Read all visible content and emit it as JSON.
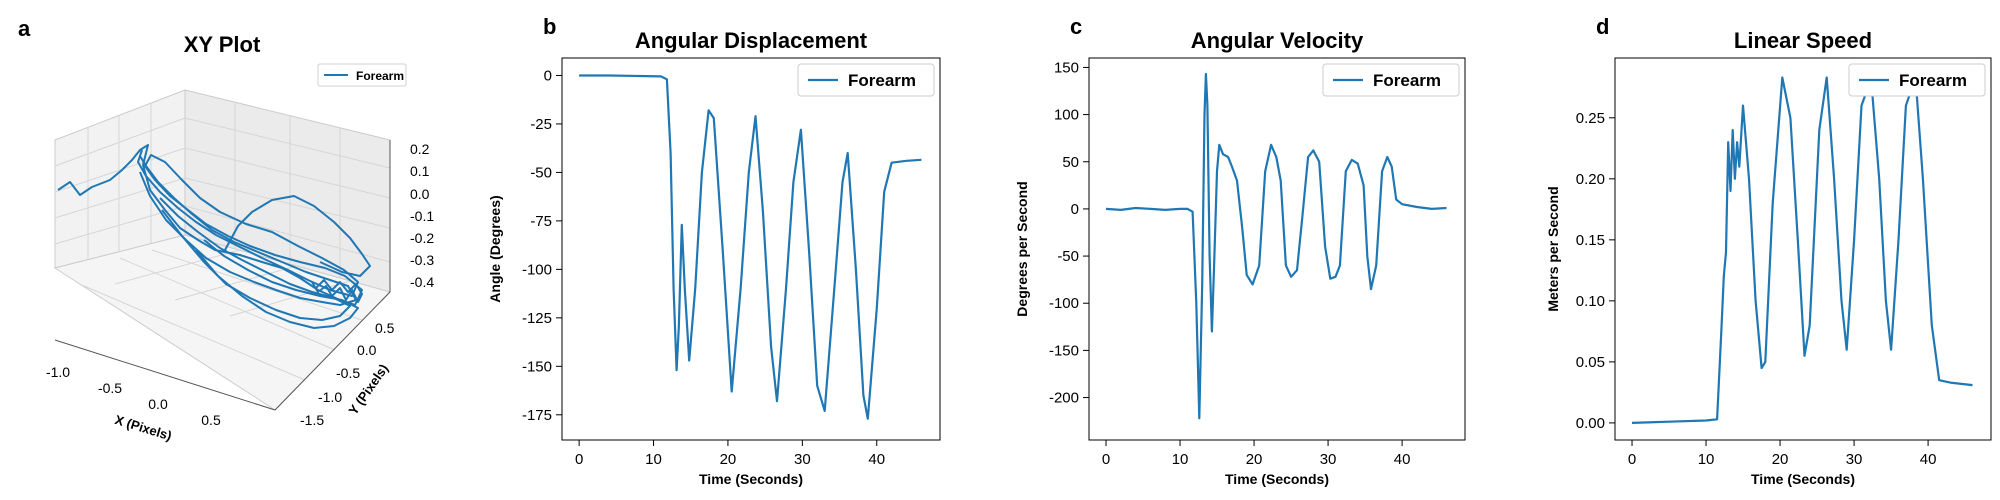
{
  "figure": {
    "line_color": "#1f77b4",
    "panels": [
      "a",
      "b",
      "c",
      "d"
    ]
  },
  "chart_data": [
    {
      "panel_letter": "a",
      "type": "line",
      "projection": "3d",
      "title": "XY Plot",
      "xlabel": "X (Pixels)",
      "ylabel": "Y (Pixels)",
      "zlabel": "",
      "xlim": [
        -1.0,
        0.8
      ],
      "ylim": [
        -1.6,
        0.6
      ],
      "zlim": [
        -0.45,
        0.22
      ],
      "x_ticks": [
        "-1.0",
        "-0.5",
        "0.0",
        "0.5"
      ],
      "y_ticks": [
        "-1.5",
        "-1.0",
        "-0.5",
        "0.0",
        "0.5"
      ],
      "z_ticks": [
        "0.2",
        "0.1",
        "0.0",
        "-0.1",
        "-0.2",
        "-0.3",
        "-0.4"
      ],
      "legend": {
        "entries": [
          "Forearm"
        ],
        "placement": "top-right"
      },
      "grid": true,
      "series": [
        {
          "name": "Forearm",
          "color": "#1f77b4"
        }
      ]
    },
    {
      "panel_letter": "b",
      "type": "line",
      "title": "Angular Displacement",
      "xlabel": "Time (Seconds)",
      "ylabel": "Angle (Degrees)",
      "xlim": [
        -2.3,
        48.5
      ],
      "ylim": [
        -188,
        9
      ],
      "x_ticks": [
        0,
        10,
        20,
        30,
        40
      ],
      "y_ticks": [
        0,
        -25,
        -50,
        -75,
        -100,
        -125,
        -150,
        -175
      ],
      "legend": {
        "entries": [
          "Forearm"
        ],
        "placement": "top-right"
      },
      "grid": false,
      "series": [
        {
          "name": "Forearm",
          "color": "#1f77b4",
          "points": [
            [
              0,
              0
            ],
            [
              4,
              0
            ],
            [
              8,
              -0.3
            ],
            [
              11,
              -0.5
            ],
            [
              11.8,
              -2
            ],
            [
              12.3,
              -40
            ],
            [
              12.7,
              -110
            ],
            [
              13.1,
              -152
            ],
            [
              13.4,
              -130
            ],
            [
              13.8,
              -77
            ],
            [
              14.2,
              -110
            ],
            [
              14.8,
              -147
            ],
            [
              15.6,
              -110
            ],
            [
              16.5,
              -50
            ],
            [
              17.4,
              -18
            ],
            [
              18.1,
              -22
            ],
            [
              19.3,
              -90
            ],
            [
              20.5,
              -163
            ],
            [
              21.7,
              -110
            ],
            [
              22.8,
              -50
            ],
            [
              23.7,
              -21
            ],
            [
              24.7,
              -70
            ],
            [
              25.8,
              -140
            ],
            [
              26.6,
              -168
            ],
            [
              27.8,
              -110
            ],
            [
              28.8,
              -55
            ],
            [
              29.8,
              -28
            ],
            [
              30.9,
              -90
            ],
            [
              32,
              -160
            ],
            [
              33,
              -173
            ],
            [
              34.3,
              -110
            ],
            [
              35.4,
              -55
            ],
            [
              36.1,
              -40
            ],
            [
              37.2,
              -100
            ],
            [
              38.2,
              -165
            ],
            [
              38.8,
              -177
            ],
            [
              40,
              -120
            ],
            [
              41,
              -60
            ],
            [
              42,
              -45
            ],
            [
              44,
              -44
            ],
            [
              46,
              -43.5
            ]
          ]
        }
      ]
    },
    {
      "panel_letter": "c",
      "type": "line",
      "title": "Angular Velocity",
      "xlabel": "Time (Seconds)",
      "ylabel": "Degrees per Second",
      "xlim": [
        -2.3,
        48.5
      ],
      "ylim": [
        -245,
        160
      ],
      "x_ticks": [
        0,
        10,
        20,
        30,
        40
      ],
      "y_ticks": [
        150,
        100,
        50,
        0,
        -50,
        -100,
        -150,
        -200
      ],
      "legend": {
        "entries": [
          "Forearm"
        ],
        "placement": "top-right"
      },
      "grid": false,
      "series": [
        {
          "name": "Forearm",
          "color": "#1f77b4",
          "points": [
            [
              0,
              0
            ],
            [
              2,
              -1
            ],
            [
              4,
              1
            ],
            [
              6,
              0
            ],
            [
              8,
              -1
            ],
            [
              10,
              0
            ],
            [
              11,
              0
            ],
            [
              11.7,
              -3
            ],
            [
              12.2,
              -100
            ],
            [
              12.6,
              -222
            ],
            [
              13,
              -80
            ],
            [
              13.3,
              100
            ],
            [
              13.5,
              143
            ],
            [
              13.7,
              110
            ],
            [
              14,
              -50
            ],
            [
              14.3,
              -130
            ],
            [
              14.6,
              -60
            ],
            [
              15,
              40
            ],
            [
              15.3,
              68
            ],
            [
              15.8,
              58
            ],
            [
              16.5,
              55
            ],
            [
              17,
              45
            ],
            [
              17.7,
              30
            ],
            [
              18.4,
              -20
            ],
            [
              19,
              -70
            ],
            [
              19.8,
              -80
            ],
            [
              20.7,
              -60
            ],
            [
              21.5,
              40
            ],
            [
              22.3,
              68
            ],
            [
              23,
              55
            ],
            [
              23.6,
              30
            ],
            [
              24.3,
              -60
            ],
            [
              25,
              -72
            ],
            [
              25.8,
              -65
            ],
            [
              26.5,
              -10
            ],
            [
              27.3,
              55
            ],
            [
              28,
              62
            ],
            [
              28.8,
              50
            ],
            [
              29.6,
              -40
            ],
            [
              30.3,
              -74
            ],
            [
              31,
              -72
            ],
            [
              31.6,
              -60
            ],
            [
              32.4,
              40
            ],
            [
              33.2,
              52
            ],
            [
              34,
              48
            ],
            [
              34.8,
              25
            ],
            [
              35.3,
              -50
            ],
            [
              35.8,
              -85
            ],
            [
              36.5,
              -60
            ],
            [
              37.3,
              40
            ],
            [
              38,
              55
            ],
            [
              38.6,
              45
            ],
            [
              39.2,
              10
            ],
            [
              40,
              5
            ],
            [
              42,
              2
            ],
            [
              44,
              0
            ],
            [
              46,
              1
            ]
          ]
        }
      ]
    },
    {
      "panel_letter": "d",
      "type": "line",
      "title": "Linear Speed",
      "xlabel": "Time (Seconds)",
      "ylabel": "Meters per Second",
      "xlim": [
        -2.3,
        48.5
      ],
      "ylim": [
        -0.014,
        0.299
      ],
      "x_ticks": [
        0,
        10,
        20,
        30,
        40
      ],
      "y_ticks": [
        0.0,
        0.05,
        0.1,
        0.15,
        0.2,
        0.25
      ],
      "y_tick_labels": [
        "0.00",
        "0.05",
        "0.10",
        "0.15",
        "0.20",
        "0.25"
      ],
      "legend": {
        "entries": [
          "Forearm"
        ],
        "placement": "top-right"
      },
      "grid": false,
      "series": [
        {
          "name": "Forearm",
          "color": "#1f77b4",
          "points": [
            [
              0,
              0
            ],
            [
              5,
              0.001
            ],
            [
              10,
              0.002
            ],
            [
              11.5,
              0.003
            ],
            [
              12.1,
              0.08
            ],
            [
              12.4,
              0.12
            ],
            [
              12.7,
              0.14
            ],
            [
              13,
              0.23
            ],
            [
              13.3,
              0.19
            ],
            [
              13.6,
              0.24
            ],
            [
              13.9,
              0.2
            ],
            [
              14.2,
              0.23
            ],
            [
              14.5,
              0.21
            ],
            [
              15,
              0.26
            ],
            [
              15.8,
              0.2
            ],
            [
              16.7,
              0.1
            ],
            [
              17.5,
              0.045
            ],
            [
              18,
              0.05
            ],
            [
              19,
              0.18
            ],
            [
              20.3,
              0.283
            ],
            [
              21.4,
              0.25
            ],
            [
              22.4,
              0.15
            ],
            [
              23.3,
              0.055
            ],
            [
              24,
              0.08
            ],
            [
              25.3,
              0.24
            ],
            [
              26.3,
              0.283
            ],
            [
              27.3,
              0.2
            ],
            [
              28.3,
              0.1
            ],
            [
              29,
              0.06
            ],
            [
              30,
              0.15
            ],
            [
              31,
              0.26
            ],
            [
              32.3,
              0.282
            ],
            [
              33.4,
              0.2
            ],
            [
              34.3,
              0.1
            ],
            [
              35,
              0.06
            ],
            [
              36,
              0.15
            ],
            [
              37,
              0.26
            ],
            [
              38.3,
              0.283
            ],
            [
              39.3,
              0.2
            ],
            [
              40.5,
              0.08
            ],
            [
              41.5,
              0.035
            ],
            [
              43,
              0.033
            ],
            [
              46,
              0.031
            ]
          ]
        }
      ]
    }
  ]
}
